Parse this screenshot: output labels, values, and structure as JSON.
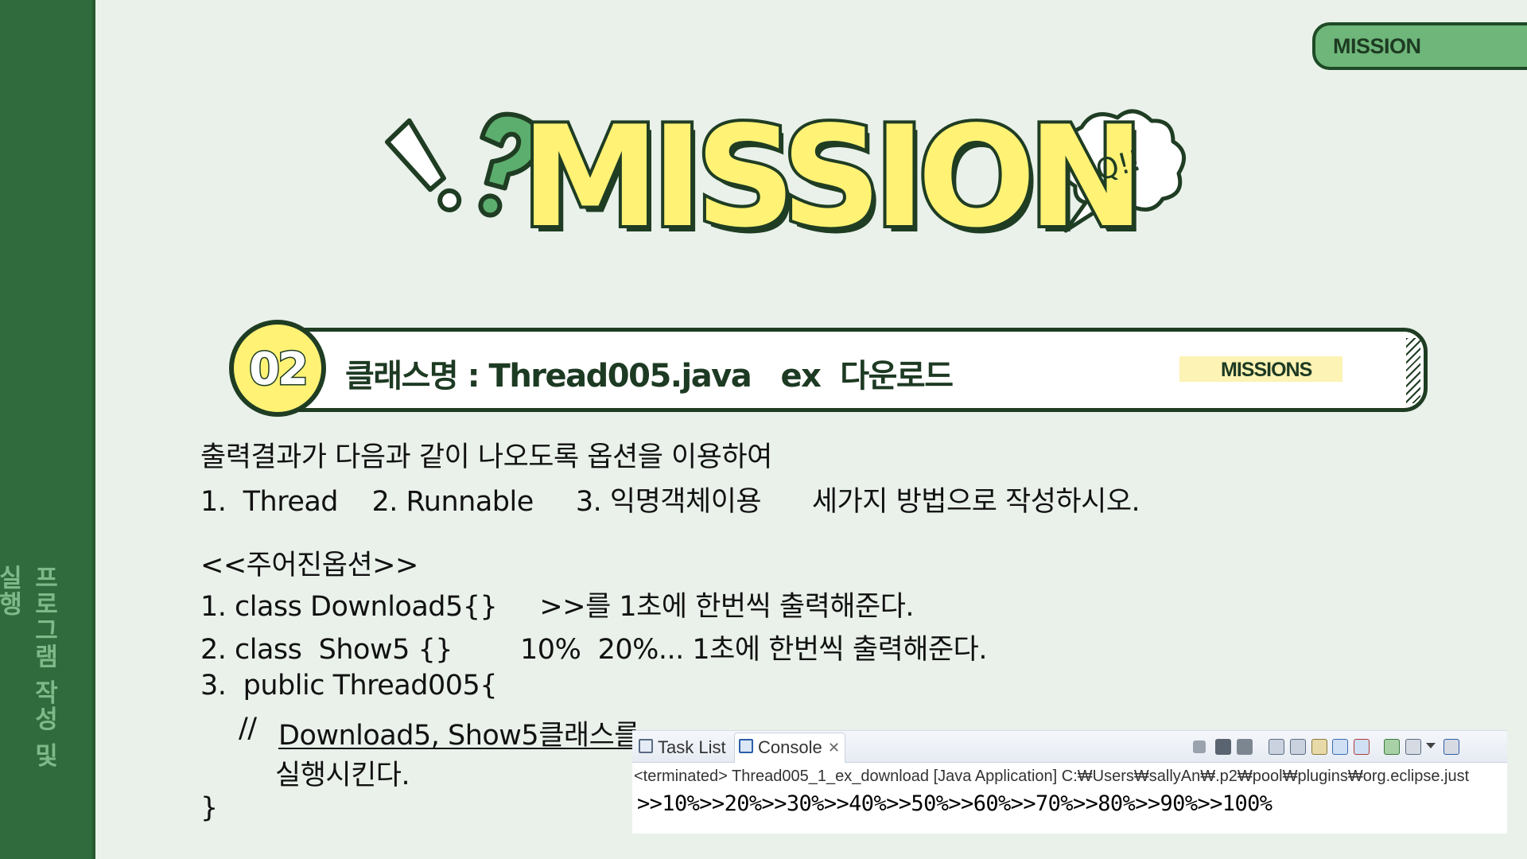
{
  "sidebar": {
    "label": "프로그램 작성 및 실행"
  },
  "tab": {
    "label": "MISSION"
  },
  "hero": {
    "title": "MISSION",
    "bubble": "Q!!"
  },
  "banner": {
    "number": "02",
    "title": "클래스명 : Thread005.java   ex  다운로드",
    "tag": "MISSIONS"
  },
  "body": {
    "intro": "출력결과가 다음과 같이 나오도록 옵션을 이용하여",
    "methods": "1.  Thread    2. Runnable     3. 익명객체이용      세가지 방법으로 작성하시오.",
    "options_header": "<<주어진옵션>>",
    "opt1": "1. class Download5{}     >>를 1초에 한번씩 출력해준다.",
    "opt2": "2. class  Show5 {}        10%  20%... 1초에 한번씩 출력해준다.",
    "opt3": "3.  public Thread005{",
    "comment": "//",
    "comment_text": "Download5, Show5클래스를",
    "comment_text2": "실행시킨다.",
    "close_brace": "}"
  },
  "console": {
    "tab_tasklist": "Task List",
    "tab_console": "Console",
    "close_glyph": "✕",
    "status": "<terminated> Thread005_1_ex_download [Java Application] C:₩Users₩sallyAn₩.p2₩pool₩plugins₩org.eclipse.just",
    "output": ">>10%>>20%>>30%>>40%>>50%>>60%>>70%>>80%>>90%>>100%"
  }
}
